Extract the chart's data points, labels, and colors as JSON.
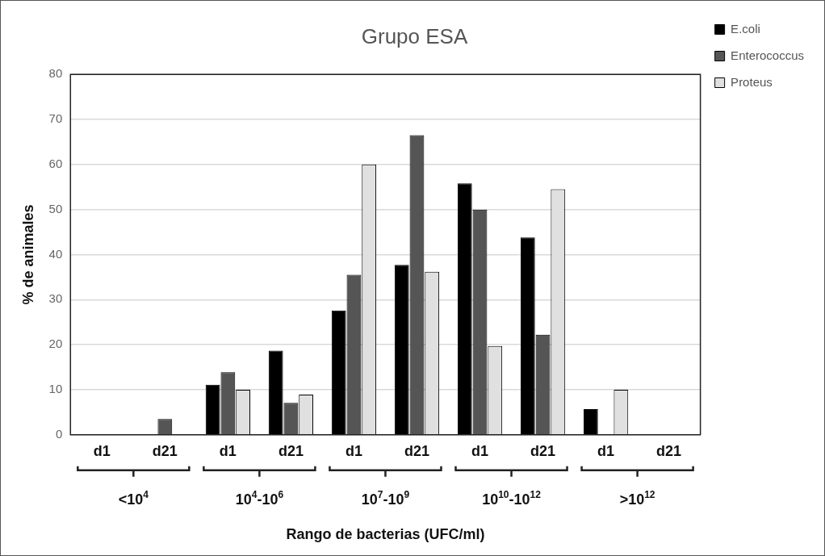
{
  "chart_data": {
    "type": "bar",
    "title": "Grupo ESA",
    "xlabel": "Rango de bacterias (UFC/ml)",
    "ylabel": "% de animales",
    "categories": [
      "d1",
      "d21",
      "d1",
      "d21",
      "d1",
      "d21",
      "d1",
      "d21",
      "d1",
      "d21"
    ],
    "series": [
      {
        "name": "E.coli",
        "color": "#000000",
        "values": [
          0,
          0,
          11.1,
          18.7,
          27.6,
          37.7,
          55.8,
          43.8,
          5.7,
          0
        ]
      },
      {
        "name": "Enterococcus",
        "color": "#555555",
        "values": [
          0,
          3.5,
          13.9,
          7.1,
          35.5,
          66.5,
          50,
          22.2,
          0,
          0
        ]
      },
      {
        "name": "Proteus",
        "color": "#e0e0e0",
        "values": [
          0,
          0,
          10,
          8.9,
          60,
          36.2,
          19.7,
          54.5,
          10,
          0
        ]
      }
    ],
    "annotations": [
      "<10$^{4}$",
      "10$^{4}$-10$^{6}$",
      "10$^{7}$-10$^{9}$",
      "10$^{10}$-10$^{12}$",
      ">10$^{12}$"
    ],
    "ylim": [
      0,
      80
    ],
    "yticks": [
      0,
      10,
      20,
      30,
      40,
      50,
      60,
      70,
      80
    ],
    "grid": "y",
    "legend": "top right"
  }
}
